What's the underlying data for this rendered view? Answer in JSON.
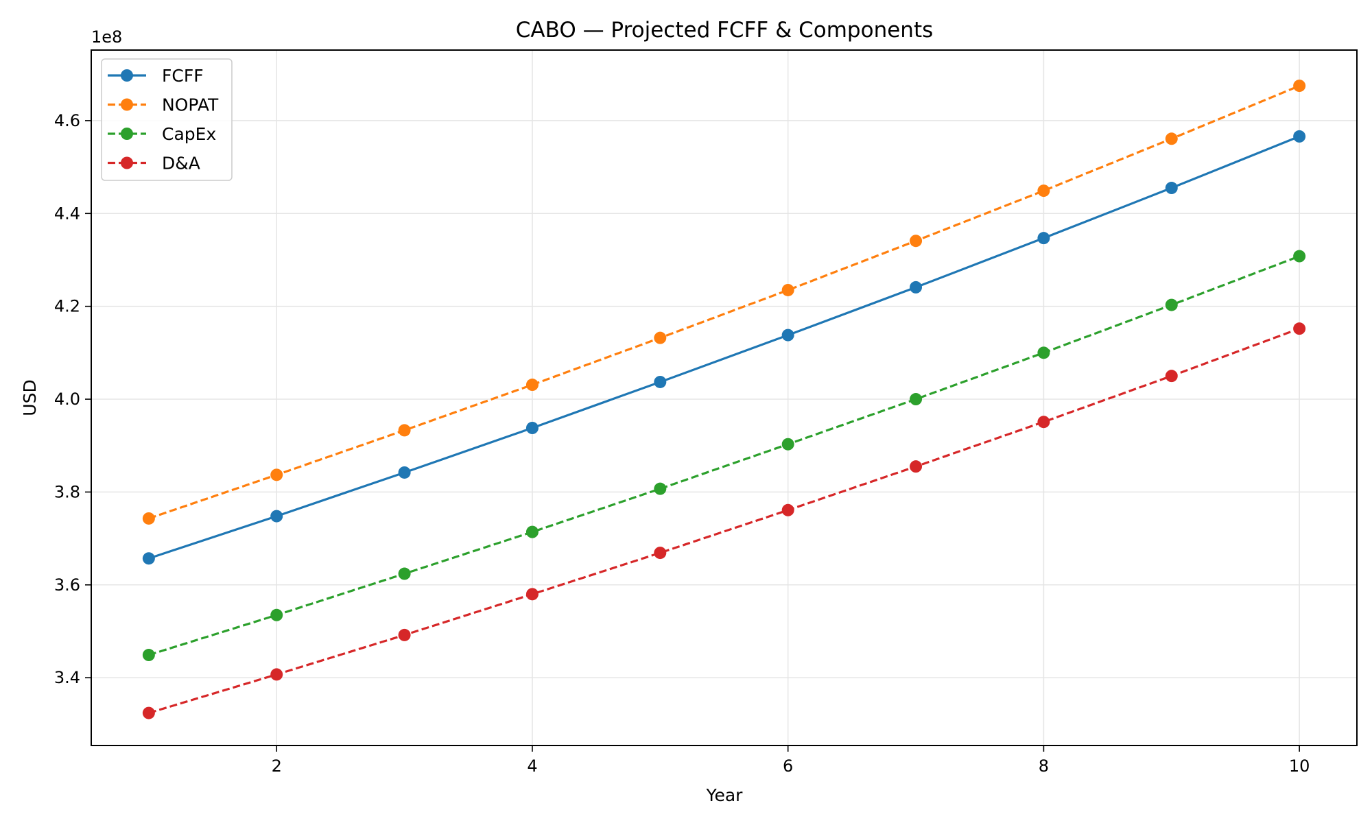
{
  "chart_data": {
    "type": "line",
    "title": "CABO — Projected FCFF & Components",
    "xlabel": "Year",
    "ylabel": "USD",
    "offset_text": "1e8",
    "x": [
      1,
      2,
      3,
      4,
      5,
      6,
      7,
      8,
      9,
      10
    ],
    "xlim": [
      0.55,
      10.45
    ],
    "ylim": [
      3.254,
      4.752
    ],
    "xticks": [
      2,
      4,
      6,
      8,
      10
    ],
    "xtick_labels": [
      "2",
      "4",
      "6",
      "8",
      "10"
    ],
    "yticks": [
      3.4,
      3.6,
      3.8,
      4.0,
      4.2,
      4.4,
      4.6
    ],
    "ytick_labels": [
      "3.4",
      "3.6",
      "3.8",
      "4.0",
      "4.2",
      "4.4",
      "4.6"
    ],
    "grid": true,
    "legend_position": "top-left",
    "series": [
      {
        "name": "FCFF",
        "color": "#1f77b4",
        "dashed": false,
        "values": [
          3.657,
          3.748,
          3.842,
          3.938,
          4.037,
          4.138,
          4.241,
          4.347,
          4.455,
          4.566
        ]
      },
      {
        "name": "NOPAT",
        "color": "#ff7f0e",
        "dashed": true,
        "values": [
          3.743,
          3.837,
          3.933,
          4.031,
          4.132,
          4.235,
          4.341,
          4.449,
          4.561,
          4.675
        ]
      },
      {
        "name": "CapEx",
        "color": "#2ca02c",
        "dashed": true,
        "values": [
          3.449,
          3.535,
          3.624,
          3.714,
          3.807,
          3.903,
          4.0,
          4.1,
          4.203,
          4.308
        ]
      },
      {
        "name": "D&A",
        "color": "#d62728",
        "dashed": true,
        "values": [
          3.324,
          3.407,
          3.492,
          3.58,
          3.669,
          3.761,
          3.855,
          3.951,
          4.05,
          4.152
        ]
      }
    ]
  }
}
